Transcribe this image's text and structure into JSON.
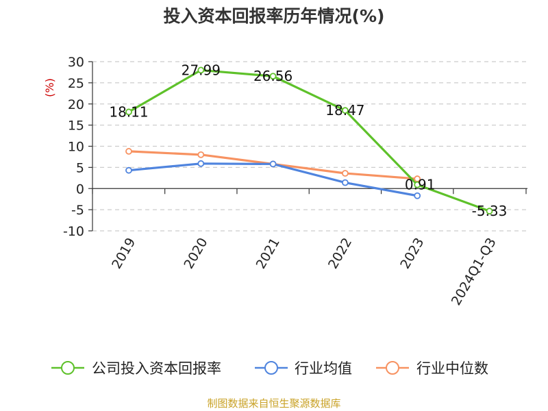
{
  "colors": {
    "company": "#5ec12a",
    "industry_avg": "#4f84de",
    "industry_median": "#f79261",
    "unit": "#cc0000",
    "source": "#c9a227",
    "grid": "#cccccc",
    "axis": "#333333"
  },
  "chart_data": {
    "type": "line",
    "title": "投入资本回报率历年情况(%)",
    "ylabel": "(%)",
    "categories": [
      "2019",
      "2020",
      "2021",
      "2022",
      "2023",
      "2024Q1-Q3"
    ],
    "ylim": [
      -10,
      30
    ],
    "yticks": [
      30,
      25,
      20,
      15,
      10,
      5,
      0,
      -5,
      -10
    ],
    "grid": true,
    "legend_position": "bottom",
    "series": [
      {
        "name": "公司投入资本回报率",
        "values": [
          18.11,
          27.99,
          26.56,
          18.47,
          0.91,
          -5.33
        ],
        "labels": [
          "18.11",
          "27.99",
          "26.56",
          "18.47",
          "0.91",
          "-5.33"
        ]
      },
      {
        "name": "行业均值",
        "values": [
          4.3,
          5.9,
          5.8,
          1.4,
          -1.7,
          null
        ]
      },
      {
        "name": "行业中位数",
        "values": [
          8.8,
          8.0,
          5.8,
          3.6,
          2.3,
          null
        ]
      }
    ]
  },
  "source_note": "制图数据来自恒生聚源数据库"
}
